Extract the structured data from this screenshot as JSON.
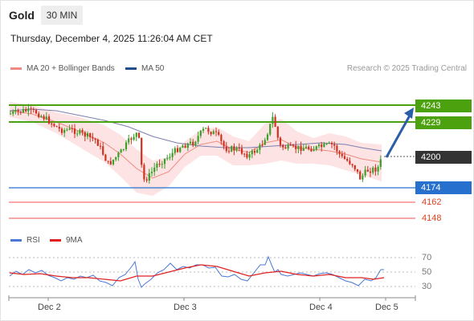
{
  "header": {
    "instrument": "Gold",
    "timeframe": "30 MIN"
  },
  "datetime": "Thursday, December 4, 2025 11:26:04 AM CET",
  "legend": {
    "bollinger": {
      "label": "MA 20 + Bollinger Bands",
      "color": "#f08a80"
    },
    "ma50": {
      "label": "MA 50",
      "color": "#1f4e8c"
    }
  },
  "credit": "Research © 2025 Trading Central",
  "price_levels": {
    "resistance_2": "4243",
    "resistance_1": "4229",
    "current": "4200",
    "support_1": "4174",
    "support_2": "4162",
    "support_3": "4148"
  },
  "rsi_legend": {
    "rsi": {
      "label": "RSI",
      "color": "#4a78d6"
    },
    "ma9": {
      "label": "9MA",
      "color": "#e02020"
    }
  },
  "rsi_levels": [
    "70",
    "50",
    "30"
  ],
  "x_labels": [
    "Dec 2",
    "Dec 3",
    "Dec 4",
    "Dec 5"
  ],
  "colors": {
    "up": "#3aa02a",
    "down": "#d03020",
    "resistance": "#4ca10e",
    "support": "#2770ce",
    "target_arrow": "#2a5ea8"
  }
}
